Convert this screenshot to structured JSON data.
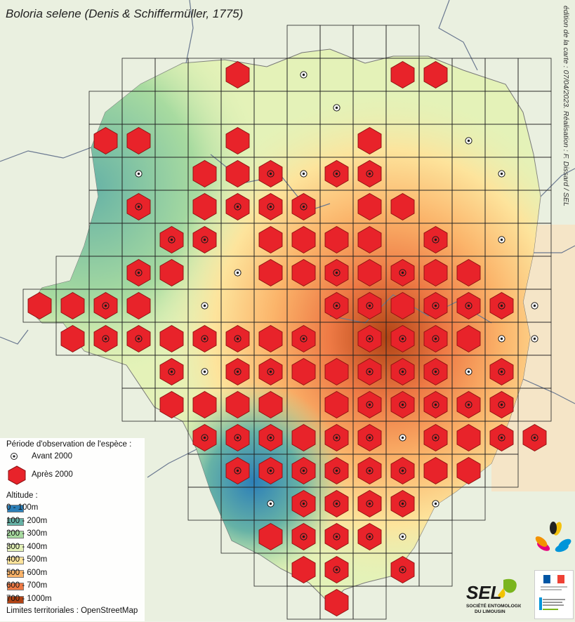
{
  "title": "Boloria selene (Denis & Schiffermüller, 1775)",
  "credit": "édition de la carte : 07/04/2023. Réalisation : F. Dissard / SEL",
  "legend": {
    "period_title": "Période d'observation de l'espèce :",
    "before_label": "Avant 2000",
    "after_label": "Après 2000",
    "altitude_title": "Altitude :",
    "altitude_classes": [
      {
        "label": "0 - 100m",
        "color": "#2c7fb8"
      },
      {
        "label": "100 - 200m",
        "color": "#66b2a6"
      },
      {
        "label": "200 - 300m",
        "color": "#a8dba0"
      },
      {
        "label": "300 - 400m",
        "color": "#e4f2b8"
      },
      {
        "label": "400 - 500m",
        "color": "#fde49c"
      },
      {
        "label": "500 - 600m",
        "color": "#fbb46a"
      },
      {
        "label": "600 - 700m",
        "color": "#ee7a45"
      },
      {
        "label": "700 - 1000m",
        "color": "#b04314"
      }
    ],
    "limits_label": "Limites territoriales : OpenStreetMap"
  },
  "logos": {
    "sel_big": "SEL",
    "sel_line1": "SOCIÉTÉ ENTOMOLOGIQUE",
    "sel_line2": "DU LIMOUSIN"
  },
  "colors": {
    "hexagon_fill": "#e8232a",
    "hexagon_stroke": "#8a1010",
    "grid_line": "#222222"
  }
}
